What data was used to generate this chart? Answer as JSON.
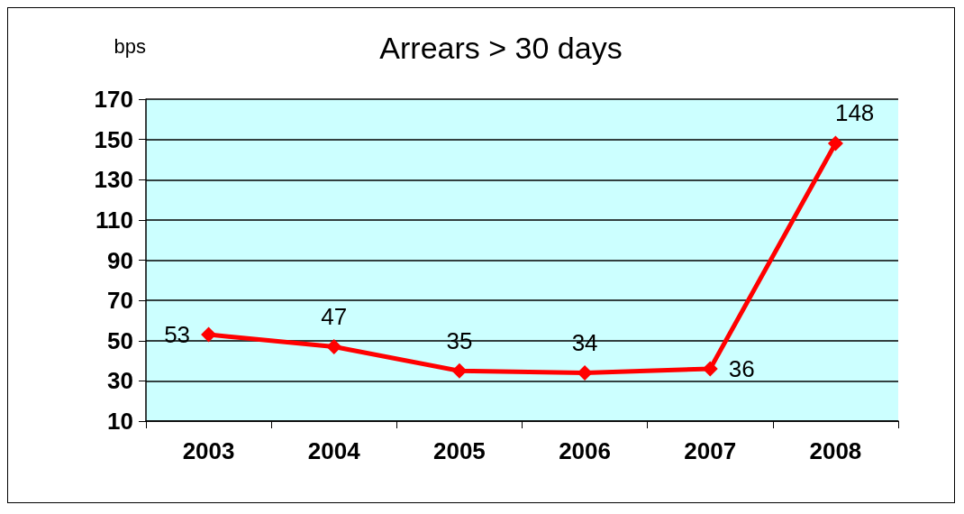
{
  "chart_data": {
    "type": "line",
    "title": "Arrears > 30 days",
    "ylabel": "bps",
    "categories": [
      "2003",
      "2004",
      "2005",
      "2006",
      "2007",
      "2008"
    ],
    "series": [
      {
        "color": "#ff0000",
        "values": [
          53,
          47,
          35,
          34,
          36,
          148
        ]
      }
    ],
    "ylim": [
      10,
      170
    ],
    "yticks": [
      10,
      30,
      50,
      70,
      90,
      110,
      130,
      150,
      170
    ],
    "grid": "y",
    "marker": "diamond",
    "line_style": "solid",
    "data_labels": true
  }
}
